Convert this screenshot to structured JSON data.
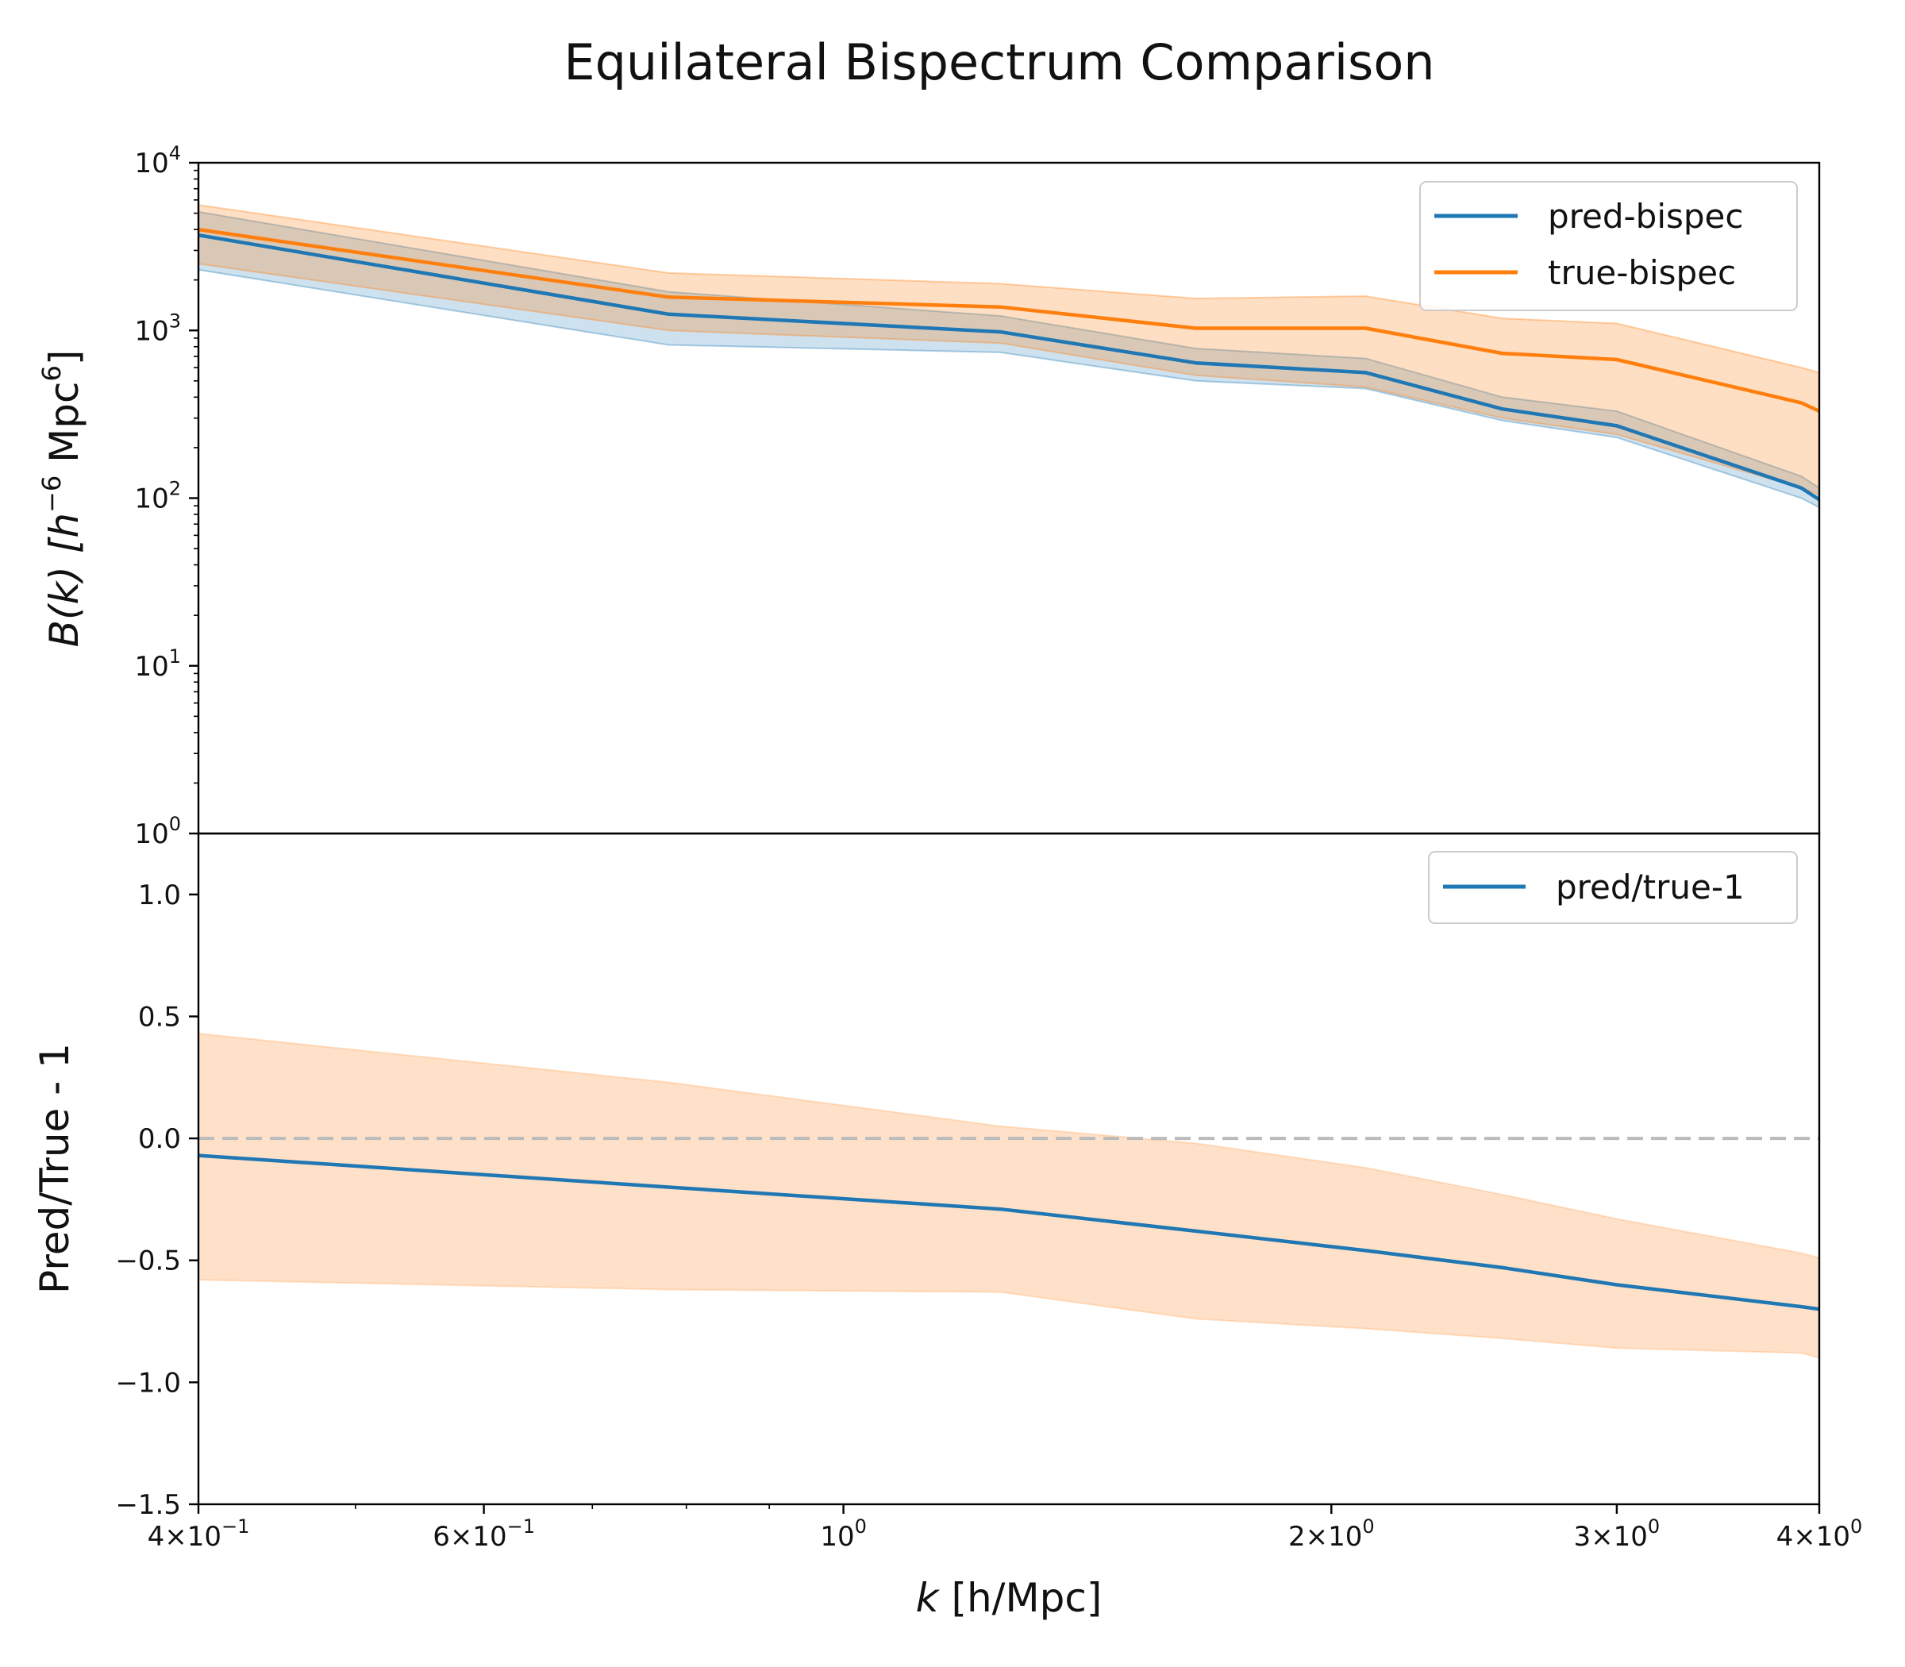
{
  "chart_data": {
    "title": "Equilateral Bispectrum Comparison",
    "colors": {
      "pred": "#1f77b4",
      "true": "#ff7f0e",
      "ratio_band": "#ffdcbf",
      "reference_line": "#bbbbbb"
    },
    "x": {
      "label_prefix": "k",
      "label_suffix": " [h/Mpc]",
      "scale": "log",
      "lim": [
        0.4,
        4.0
      ],
      "ticks": [
        {
          "value": 0.4,
          "mantissa": "4",
          "exponent": "−1"
        },
        {
          "value": 0.6,
          "mantissa": "6",
          "exponent": "−1"
        },
        {
          "value": 1.0,
          "mantissa": "",
          "exponent": "0"
        },
        {
          "value": 2.0,
          "mantissa": "2",
          "exponent": "0"
        },
        {
          "value": 3.0,
          "mantissa": "3",
          "exponent": "0"
        },
        {
          "value": 4.0,
          "mantissa": "4",
          "exponent": "0"
        }
      ],
      "values": [
        0.4,
        0.78,
        1.25,
        1.65,
        2.1,
        2.55,
        3.0,
        3.9,
        4.0
      ]
    },
    "panels": [
      {
        "type": "line",
        "ylabel": {
          "prefix": "B(k) [h",
          "exp1": "−6",
          "middle": " Mpc",
          "exp2": "6",
          "suffix": "]"
        },
        "yscale": "log",
        "ylim": [
          1,
          10000
        ],
        "yticks": [
          {
            "value": 1,
            "base": "10",
            "exponent": "0"
          },
          {
            "value": 10,
            "base": "10",
            "exponent": "1"
          },
          {
            "value": 100,
            "base": "10",
            "exponent": "2"
          },
          {
            "value": 1000,
            "base": "10",
            "exponent": "3"
          },
          {
            "value": 10000,
            "base": "10",
            "exponent": "4"
          }
        ],
        "legend": "top-right",
        "series": [
          {
            "name": "pred-bispec",
            "key": "pred",
            "values": [
              3700,
              1250,
              980,
              640,
              560,
              340,
              270,
              115,
              98
            ],
            "band_lower": [
              2300,
              820,
              740,
              500,
              450,
              290,
              230,
              100,
              88
            ],
            "band_upper": [
              5100,
              1700,
              1220,
              780,
              680,
              400,
              330,
              135,
              115
            ]
          },
          {
            "name": "true-bispec",
            "key": "true",
            "values": [
              4000,
              1580,
              1380,
              1030,
              1030,
              730,
              670,
              370,
              330
            ],
            "band_lower": [
              2500,
              1000,
              840,
              540,
              460,
              300,
              240,
              115,
              105
            ],
            "band_upper": [
              5600,
              2200,
              1900,
              1550,
              1600,
              1180,
              1100,
              600,
              560
            ]
          }
        ]
      },
      {
        "type": "line",
        "ylabel": "Pred/True - 1",
        "ylim": [
          -1.5,
          1.25
        ],
        "yticks": [
          {
            "value": 1.0,
            "label": "1.0"
          },
          {
            "value": 0.5,
            "label": "0.5"
          },
          {
            "value": 0.0,
            "label": "0.0"
          },
          {
            "value": -0.5,
            "label": "−0.5"
          },
          {
            "value": -1.0,
            "label": "−1.0"
          },
          {
            "value": -1.5,
            "label": "−1.5"
          }
        ],
        "reference_y": 0.0,
        "legend": "top-right",
        "series": [
          {
            "name": "pred/true-1",
            "key": "pred",
            "values": [
              -0.07,
              -0.2,
              -0.29,
              -0.38,
              -0.46,
              -0.53,
              -0.6,
              -0.69,
              -0.7
            ],
            "band_lower": [
              -0.58,
              -0.62,
              -0.63,
              -0.74,
              -0.78,
              -0.82,
              -0.86,
              -0.88,
              -0.9
            ],
            "band_upper": [
              0.43,
              0.23,
              0.05,
              -0.02,
              -0.12,
              -0.23,
              -0.33,
              -0.47,
              -0.49
            ]
          }
        ]
      }
    ]
  }
}
